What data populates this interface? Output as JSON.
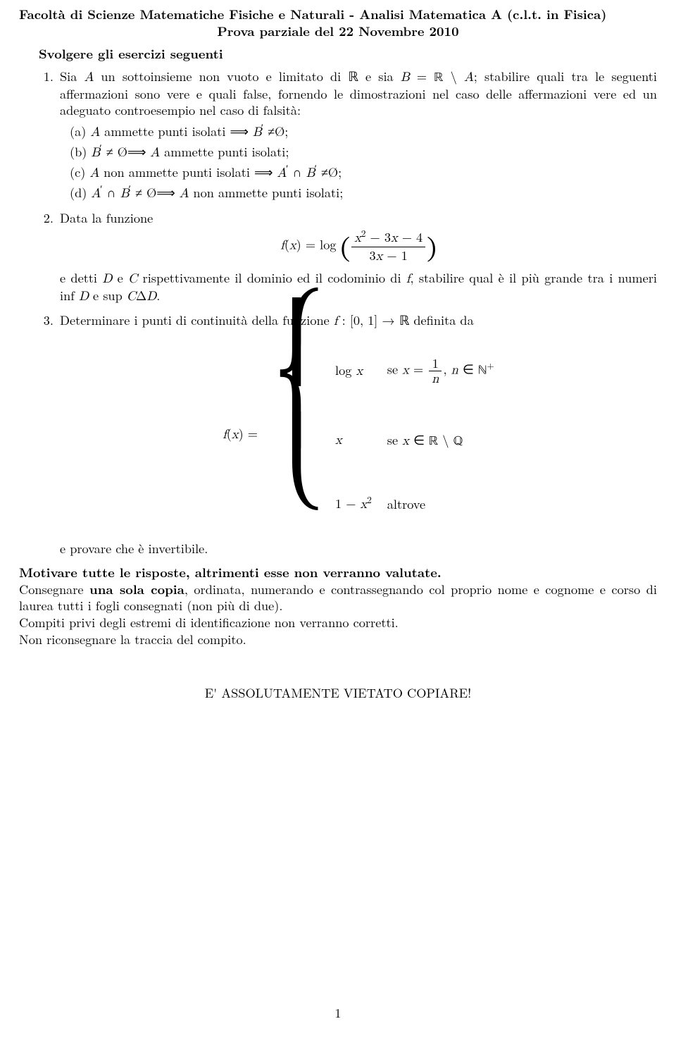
{
  "header": {
    "title": "Facoltà di Scienze Matematiche Fisiche e Naturali - Analisi Matematica A (c.l.t. in Fisica)",
    "subtitle": "Prova parziale del 22 Novembre 2010",
    "instruction": "Svolgere gli esercizi seguenti"
  },
  "q1": {
    "text_pre": "Sia ",
    "text_rest": " un sottoinsieme non vuoto e limitato di ℝ e sia ",
    "text_post_B": "; stabilire quali tra le seguenti affermazioni sono vere e quali false, fornendo le dimostrazioni nel caso delle affermazioni vere ed un adeguato controesempio nel caso di falsità:",
    "items": {
      "a": " ammette punti isolati ⟹ ",
      "a2": " ≠Ø;",
      "b": " ≠ Ø⟹ ",
      "b2": " ammette punti isolati;",
      "c": " non ammette punti isolati ⟹ ",
      "c2": " ≠Ø;",
      "d": " ≠ Ø⟹ ",
      "d2": " non ammette punti isolati;"
    }
  },
  "q2": {
    "lead": "Data la funzione",
    "f_label": "f(x) = log",
    "num": "x² − 3x − 4",
    "den": "3x − 1",
    "after1": "e detti ",
    "after2": " e ",
    "after3": " rispettivamente il dominio ed il codominio di ",
    "after4": ", stabilire qual è il più grande tra i numeri inf ",
    "after5": " e sup ",
    "after6": "."
  },
  "q3": {
    "lead1": "Determinare i punti di continuità della funzione ",
    "lead2": " : [0, 1] → ℝ definita da",
    "fx": "f(x) =",
    "row1a": "log x",
    "row1b_pre": "se x = ",
    "row1b_num": "1",
    "row1b_den": "n",
    "row1b_post": ", n ∈ ℕ",
    "row2a": "x",
    "row2b": "se x ∈ ℝ \\ ℚ",
    "row3a": "1 − x²",
    "row3b": "altrove",
    "trail": "e provare che è invertibile."
  },
  "footer": {
    "motivare": "Motivare tutte le risposte, altrimenti esse non verranno valutate.",
    "line2a": "Consegnare ",
    "line2b": "una sola copia",
    "line2c": ", ordinata, numerando e contrassegnando col proprio nome e cognome e corso di laurea tutti i fogli consegnati (non più di due).",
    "line3": "Compiti privi degli estremi di identificazione non verranno corretti.",
    "line4": "Non riconsegnare la traccia del compito.",
    "warn": "E' ASSOLUTAMENTE VIETATO COPIARE!",
    "pagenum": "1"
  }
}
